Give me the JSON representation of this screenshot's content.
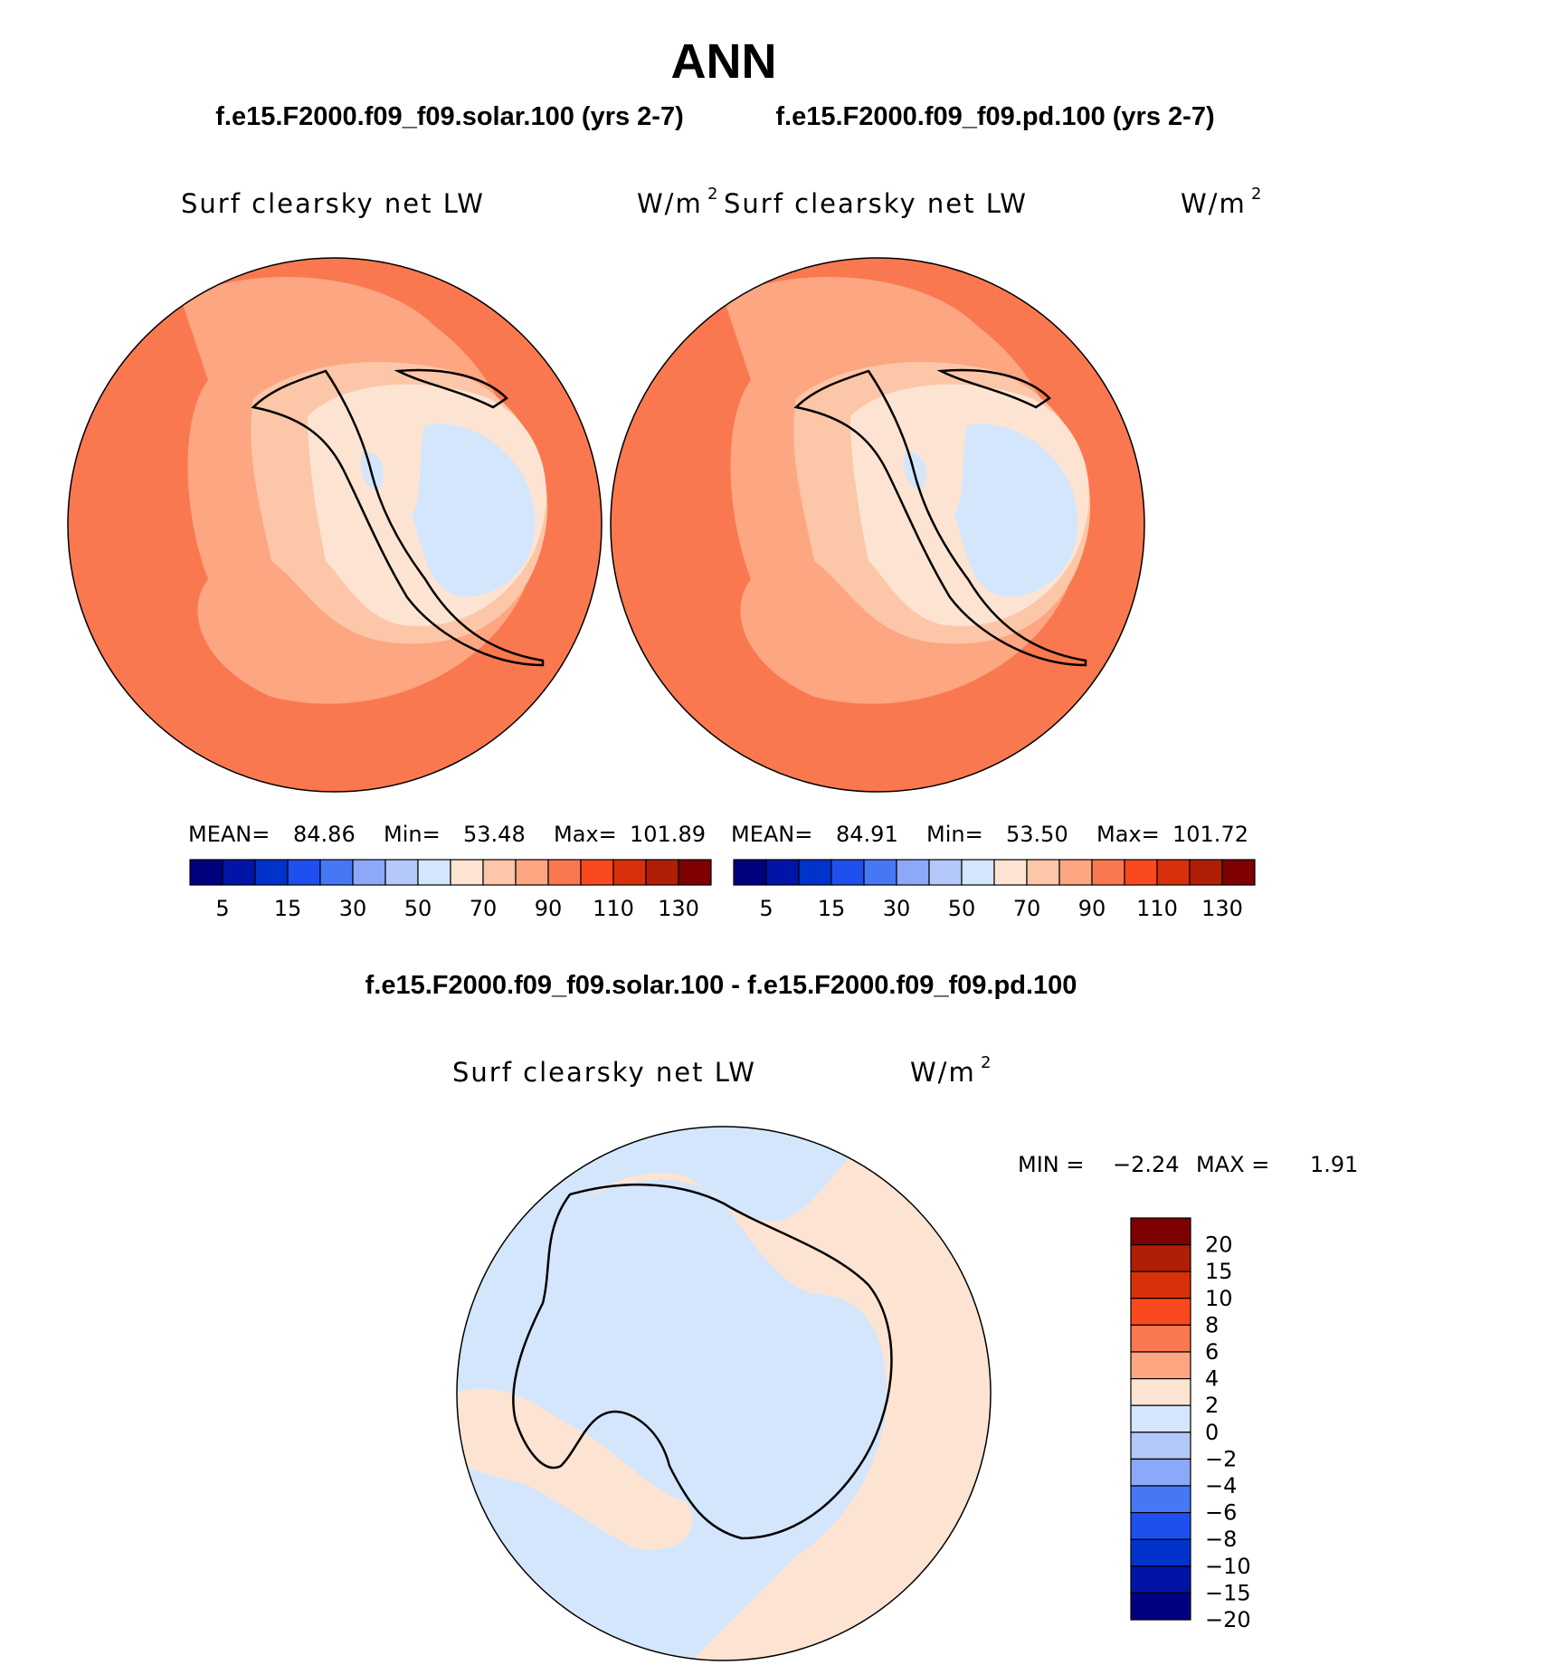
{
  "main_title": "ANN",
  "panels": [
    {
      "case_label": "f.e15.F2000.f09_f09.solar.100 (yrs 2-7)",
      "variable": "Surf clearsky net LW",
      "units": "W/m",
      "units_exp": "2",
      "stats": {
        "mean_label": "MEAN=",
        "mean": "84.86",
        "min_label": "Min=",
        "min": "53.48",
        "max_label": "Max=",
        "max": "101.89"
      }
    },
    {
      "case_label": "f.e15.F2000.f09_f09.pd.100 (yrs 2-7)",
      "variable": "Surf clearsky net LW",
      "units": "W/m",
      "units_exp": "2",
      "stats": {
        "mean_label": "MEAN=",
        "mean": "84.91",
        "min_label": "Min=",
        "min": "53.50",
        "max_label": "Max=",
        "max": "101.72"
      }
    }
  ],
  "abs_colorbar": {
    "colors": [
      "#00007f",
      "#0014a8",
      "#0033cc",
      "#1e50f0",
      "#4678f5",
      "#8ca8f8",
      "#b4c8fa",
      "#d4e6fb",
      "#fde4d2",
      "#fcc6a8",
      "#fca682",
      "#fa7850",
      "#f84a1e",
      "#d8300a",
      "#b01e06",
      "#7f0000"
    ],
    "labels": [
      "5",
      "15",
      "30",
      "50",
      "70",
      "90",
      "110",
      "130"
    ]
  },
  "diff_panel": {
    "title": "f.e15.F2000.f09_f09.solar.100 - f.e15.F2000.f09_f09.pd.100",
    "variable": "Surf clearsky net LW",
    "units": "W/m",
    "units_exp": "2",
    "min_label": "MIN =",
    "min": "−2.24",
    "max_label": "MAX =",
    "max": "1.91"
  },
  "diff_colorbar": {
    "colors_top_to_bottom": [
      "#7f0000",
      "#b01e06",
      "#d8300a",
      "#f84a1e",
      "#fa7850",
      "#fca682",
      "#fde4d2",
      "#d4e6fb",
      "#b4c8fa",
      "#8ca8f8",
      "#4678f5",
      "#1e50f0",
      "#0033cc",
      "#0014a8",
      "#00007f"
    ],
    "labels_top_to_bottom": [
      "20",
      "15",
      "10",
      "8",
      "6",
      "4",
      "2",
      "0",
      "−2",
      "−4",
      "−6",
      "−8",
      "−10",
      "−15",
      "−20"
    ]
  },
  "map_colors": {
    "ocean_abs": "#fa7850",
    "shelf_abs": "#fca682",
    "coast_abs": "#fcc6a8",
    "interior_abs": "#fde4d2",
    "plateau_abs": "#d4e6fb",
    "diff_pos": "#fde4d2",
    "diff_neg": "#d4e6fb"
  }
}
